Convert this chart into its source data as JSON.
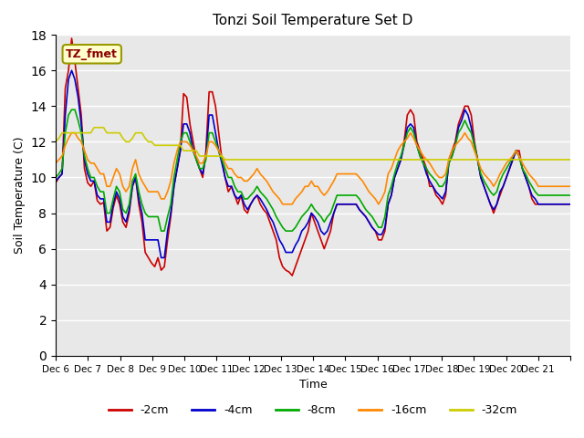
{
  "title": "Tonzi Soil Temperature Set D",
  "xlabel": "Time",
  "ylabel": "Soil Temperature (C)",
  "annotation": "TZ_fmet",
  "ylim": [
    0,
    18
  ],
  "yticks": [
    0,
    2,
    4,
    6,
    8,
    10,
    12,
    14,
    16,
    18
  ],
  "x_tick_positions": [
    0,
    1,
    2,
    3,
    4,
    5,
    6,
    7,
    8,
    9,
    10,
    11,
    12,
    13,
    14,
    15,
    16
  ],
  "x_labels": [
    "Dec 6",
    "Dec 7",
    "Dec 8",
    "Dec 9",
    "Dec 10",
    "Dec 11",
    "Dec 12",
    "Dec 13",
    "Dec 14",
    "Dec 15",
    "Dec 16",
    "Dec 17",
    "Dec 18",
    "Dec 19",
    "Dec 20",
    "Dec 21",
    ""
  ],
  "colors": {
    "-2cm": "#cc0000",
    "-4cm": "#0000cc",
    "-8cm": "#00aa00",
    "-16cm": "#ff8800",
    "-32cm": "#cccc00"
  },
  "legend_labels": [
    "-2cm",
    "-4cm",
    "-8cm",
    "-16cm",
    "-32cm"
  ],
  "background_color": "#ffffff",
  "plot_bg_color": "#e8e8e8",
  "grid_color": "#ffffff",
  "n_days": 16,
  "series": {
    "-2cm": [
      9.7,
      10.0,
      10.2,
      15.0,
      16.0,
      17.8,
      16.5,
      15.0,
      13.5,
      10.5,
      9.7,
      9.5,
      9.8,
      8.7,
      8.5,
      8.6,
      7.0,
      7.2,
      8.3,
      9.0,
      8.5,
      7.5,
      7.2,
      8.0,
      9.5,
      10.0,
      8.5,
      7.5,
      5.8,
      5.5,
      5.2,
      5.0,
      5.5,
      4.8,
      5.0,
      6.5,
      7.8,
      9.5,
      10.5,
      11.5,
      14.7,
      14.5,
      13.0,
      12.0,
      11.0,
      10.5,
      10.0,
      11.5,
      14.8,
      14.8,
      14.0,
      12.5,
      11.0,
      10.0,
      9.2,
      9.5,
      9.0,
      8.5,
      9.0,
      8.2,
      8.0,
      8.5,
      8.8,
      9.0,
      8.5,
      8.2,
      8.0,
      7.5,
      7.0,
      6.5,
      5.5,
      5.0,
      4.8,
      4.7,
      4.5,
      5.0,
      5.5,
      6.0,
      6.5,
      7.0,
      8.0,
      7.5,
      7.0,
      6.5,
      6.0,
      6.5,
      7.0,
      8.0,
      8.5,
      8.5,
      8.5,
      8.5,
      8.5,
      8.5,
      8.5,
      8.2,
      8.0,
      7.8,
      7.5,
      7.2,
      7.0,
      6.5,
      6.5,
      7.0,
      8.5,
      9.0,
      10.0,
      10.5,
      11.0,
      12.0,
      13.5,
      13.8,
      13.5,
      12.0,
      11.5,
      11.0,
      10.5,
      9.5,
      9.5,
      9.0,
      8.8,
      8.5,
      9.0,
      11.0,
      11.5,
      12.0,
      13.0,
      13.5,
      14.0,
      14.0,
      13.5,
      12.0,
      11.0,
      10.0,
      9.5,
      9.0,
      8.5,
      8.0,
      8.5,
      9.0,
      9.5,
      10.0,
      10.5,
      11.0,
      11.5,
      11.5,
      10.5,
      10.0,
      9.5,
      8.8,
      8.5,
      8.5,
      8.5,
      8.5,
      8.5,
      8.5,
      8.5,
      8.5,
      8.5,
      8.5,
      8.5,
      8.5
    ],
    "-4cm": [
      9.8,
      10.0,
      10.2,
      13.5,
      15.5,
      16.0,
      15.5,
      14.5,
      13.0,
      11.0,
      10.2,
      9.8,
      9.8,
      9.0,
      8.8,
      8.8,
      7.5,
      7.5,
      8.5,
      9.2,
      8.8,
      7.8,
      7.5,
      8.2,
      9.5,
      10.0,
      8.8,
      8.0,
      6.5,
      6.5,
      6.5,
      6.5,
      6.5,
      5.5,
      5.5,
      7.0,
      8.0,
      9.5,
      10.5,
      11.5,
      13.0,
      13.0,
      12.5,
      11.5,
      11.0,
      10.5,
      10.2,
      11.2,
      13.5,
      13.5,
      12.5,
      11.5,
      10.8,
      10.0,
      9.5,
      9.5,
      9.0,
      8.8,
      9.0,
      8.5,
      8.2,
      8.5,
      8.8,
      9.0,
      8.8,
      8.5,
      8.2,
      7.8,
      7.5,
      7.0,
      6.5,
      6.2,
      5.8,
      5.8,
      5.8,
      6.2,
      6.5,
      7.0,
      7.2,
      7.5,
      8.0,
      7.8,
      7.5,
      7.0,
      6.8,
      7.0,
      7.5,
      8.0,
      8.5,
      8.5,
      8.5,
      8.5,
      8.5,
      8.5,
      8.5,
      8.2,
      8.0,
      7.8,
      7.5,
      7.2,
      7.0,
      6.8,
      6.8,
      7.2,
      8.5,
      9.0,
      10.0,
      10.5,
      11.0,
      11.8,
      12.8,
      13.0,
      12.8,
      11.8,
      11.2,
      10.8,
      10.2,
      9.8,
      9.5,
      9.2,
      9.0,
      8.8,
      9.2,
      10.8,
      11.2,
      11.8,
      12.8,
      13.2,
      13.8,
      13.5,
      12.8,
      11.8,
      11.0,
      10.0,
      9.5,
      9.0,
      8.5,
      8.2,
      8.5,
      9.2,
      9.5,
      10.0,
      10.5,
      11.0,
      11.5,
      11.2,
      10.5,
      10.0,
      9.5,
      9.0,
      8.8,
      8.5,
      8.5,
      8.5,
      8.5,
      8.5,
      8.5,
      8.5,
      8.5,
      8.5,
      8.5,
      8.5
    ],
    "-8cm": [
      10.0,
      10.2,
      10.5,
      12.5,
      13.5,
      13.8,
      13.8,
      13.2,
      12.5,
      11.2,
      10.5,
      10.0,
      10.0,
      9.5,
      9.2,
      9.2,
      8.0,
      8.0,
      8.8,
      9.5,
      9.2,
      8.2,
      8.0,
      8.5,
      9.8,
      10.2,
      9.2,
      8.5,
      8.0,
      7.8,
      7.8,
      7.8,
      7.8,
      7.0,
      7.0,
      7.8,
      8.5,
      10.0,
      11.0,
      12.0,
      12.5,
      12.5,
      12.0,
      11.5,
      11.0,
      10.5,
      10.5,
      11.0,
      12.5,
      12.5,
      12.0,
      11.5,
      11.0,
      10.5,
      10.0,
      10.0,
      9.5,
      9.2,
      9.2,
      8.8,
      8.8,
      9.0,
      9.2,
      9.5,
      9.2,
      9.0,
      8.8,
      8.5,
      8.2,
      7.8,
      7.5,
      7.2,
      7.0,
      7.0,
      7.0,
      7.2,
      7.5,
      7.8,
      8.0,
      8.2,
      8.5,
      8.2,
      8.0,
      7.8,
      7.5,
      7.8,
      8.0,
      8.5,
      9.0,
      9.0,
      9.0,
      9.0,
      9.0,
      9.0,
      9.0,
      8.8,
      8.5,
      8.2,
      8.0,
      7.8,
      7.5,
      7.2,
      7.2,
      7.8,
      9.0,
      9.5,
      10.2,
      10.8,
      11.2,
      11.8,
      12.5,
      12.8,
      12.5,
      11.8,
      11.2,
      10.8,
      10.5,
      10.2,
      10.0,
      9.8,
      9.5,
      9.5,
      9.8,
      10.8,
      11.2,
      11.8,
      12.5,
      12.8,
      13.2,
      12.8,
      12.5,
      11.8,
      11.0,
      10.2,
      9.8,
      9.5,
      9.2,
      9.0,
      9.2,
      9.8,
      10.2,
      10.5,
      10.8,
      11.2,
      11.5,
      11.2,
      10.5,
      10.2,
      9.8,
      9.5,
      9.2,
      9.0,
      9.0,
      9.0,
      9.0,
      9.0,
      9.0,
      9.0,
      9.0,
      9.0,
      9.0,
      9.0
    ],
    "-16cm": [
      10.8,
      11.0,
      11.2,
      11.8,
      12.2,
      12.5,
      12.5,
      12.2,
      12.0,
      11.5,
      11.0,
      10.8,
      10.8,
      10.5,
      10.2,
      10.2,
      9.5,
      9.5,
      10.0,
      10.5,
      10.2,
      9.5,
      9.2,
      9.5,
      10.5,
      11.0,
      10.2,
      9.8,
      9.5,
      9.2,
      9.2,
      9.2,
      9.2,
      8.8,
      8.8,
      9.2,
      9.8,
      10.8,
      11.5,
      12.0,
      12.0,
      12.0,
      11.8,
      11.5,
      11.2,
      10.8,
      10.8,
      11.2,
      12.0,
      12.0,
      11.8,
      11.5,
      11.2,
      10.8,
      10.5,
      10.5,
      10.2,
      10.0,
      10.0,
      9.8,
      9.8,
      10.0,
      10.2,
      10.5,
      10.2,
      10.0,
      9.8,
      9.5,
      9.2,
      9.0,
      8.8,
      8.5,
      8.5,
      8.5,
      8.5,
      8.8,
      9.0,
      9.2,
      9.5,
      9.5,
      9.8,
      9.5,
      9.5,
      9.2,
      9.0,
      9.2,
      9.5,
      9.8,
      10.2,
      10.2,
      10.2,
      10.2,
      10.2,
      10.2,
      10.2,
      10.0,
      9.8,
      9.5,
      9.2,
      9.0,
      8.8,
      8.5,
      8.8,
      9.2,
      10.2,
      10.5,
      11.0,
      11.5,
      11.8,
      12.0,
      12.2,
      12.5,
      12.2,
      11.8,
      11.5,
      11.2,
      11.0,
      10.8,
      10.5,
      10.2,
      10.0,
      10.0,
      10.2,
      11.0,
      11.5,
      11.8,
      12.0,
      12.2,
      12.5,
      12.2,
      12.0,
      11.5,
      11.0,
      10.5,
      10.2,
      10.0,
      9.8,
      9.5,
      9.8,
      10.2,
      10.5,
      10.8,
      11.0,
      11.2,
      11.5,
      11.2,
      10.8,
      10.5,
      10.2,
      10.0,
      9.8,
      9.5,
      9.5,
      9.5,
      9.5,
      9.5,
      9.5,
      9.5,
      9.5,
      9.5,
      9.5,
      9.5
    ],
    "-32cm": [
      12.0,
      12.2,
      12.5,
      12.5,
      12.5,
      12.5,
      12.5,
      12.5,
      12.5,
      12.5,
      12.5,
      12.5,
      12.8,
      12.8,
      12.8,
      12.8,
      12.5,
      12.5,
      12.5,
      12.5,
      12.5,
      12.2,
      12.0,
      12.0,
      12.2,
      12.5,
      12.5,
      12.5,
      12.2,
      12.0,
      12.0,
      11.8,
      11.8,
      11.8,
      11.8,
      11.8,
      11.8,
      11.8,
      11.8,
      11.8,
      11.5,
      11.5,
      11.5,
      11.5,
      11.5,
      11.2,
      11.2,
      11.2,
      11.2,
      11.2,
      11.2,
      11.2,
      11.2,
      11.0,
      11.0,
      11.0,
      11.0,
      11.0,
      11.0,
      11.0,
      11.0,
      11.0,
      11.0,
      11.0,
      11.0,
      11.0,
      11.0,
      11.0,
      11.0,
      11.0,
      11.0,
      11.0,
      11.0,
      11.0,
      11.0,
      11.0,
      11.0,
      11.0,
      11.0,
      11.0,
      11.0,
      11.0,
      11.0,
      11.0,
      11.0,
      11.0,
      11.0,
      11.0,
      11.0,
      11.0,
      11.0,
      11.0,
      11.0,
      11.0,
      11.0,
      11.0,
      11.0,
      11.0,
      11.0,
      11.0,
      11.0,
      11.0,
      11.0,
      11.0,
      11.0,
      11.0,
      11.0,
      11.0,
      11.0,
      11.0,
      11.0,
      11.0,
      11.0,
      11.0,
      11.0,
      11.0,
      11.0,
      11.0,
      11.0,
      11.0,
      11.0,
      11.0,
      11.0,
      11.0,
      11.0,
      11.0,
      11.0,
      11.0,
      11.0,
      11.0,
      11.0,
      11.0,
      11.0,
      11.0,
      11.0,
      11.0,
      11.0,
      11.0,
      11.0,
      11.0,
      11.0,
      11.0,
      11.0,
      11.0,
      11.0,
      11.0,
      11.0,
      11.0,
      11.0,
      11.0,
      11.0,
      11.0,
      11.0,
      11.0,
      11.0,
      11.0,
      11.0,
      11.0,
      11.0,
      11.0,
      11.0,
      11.0
    ]
  }
}
